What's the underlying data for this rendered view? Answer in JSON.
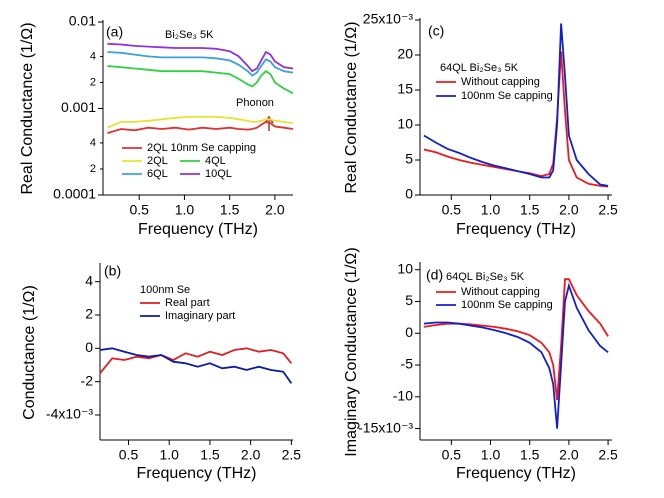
{
  "chart_data": [
    {
      "type": "line",
      "ylog": true,
      "xlabel": "Frequency (THz)",
      "ylabel": "Real Conductance (1/Ω)",
      "annotations": [
        "(a)",
        "Bi₂Se₃ 5K",
        "Phonon"
      ],
      "xlim": [
        0.1,
        2.2
      ],
      "ylim": [
        0.0001,
        0.01
      ],
      "xticks": [
        0.5,
        {
          "value": 1,
          "label": "1.0"
        },
        1.5,
        {
          "value": 2,
          "label": "2.0"
        }
      ],
      "yticks": [
        0.0001,
        {
          "value": 0.0002,
          "label": "2"
        },
        {
          "value": 0.0004,
          "label": "4"
        },
        0.001,
        {
          "value": 0.002,
          "label": "2"
        },
        {
          "value": 0.004,
          "label": "4"
        },
        0.01
      ],
      "x": [
        0.15,
        0.3,
        0.45,
        0.6,
        0.75,
        0.9,
        1.05,
        1.2,
        1.35,
        1.5,
        1.6,
        1.7,
        1.75,
        1.8,
        1.85,
        1.9,
        1.95,
        2.0,
        2.1,
        2.2
      ],
      "series": [
        {
          "name": "2QL 10nm Se capping",
          "color": "#e03030",
          "values": [
            0.00052,
            0.00058,
            0.00056,
            0.0006,
            0.00058,
            0.0006,
            0.00057,
            0.0006,
            0.00058,
            0.0006,
            0.00058,
            0.00057,
            0.00058,
            0.0006,
            0.00065,
            0.0007,
            0.00068,
            0.00062,
            0.0006,
            0.00058
          ]
        },
        {
          "name": "2QL",
          "color": "#e4e430",
          "values": [
            0.0006,
            0.0007,
            0.0007,
            0.00072,
            0.00075,
            0.00078,
            0.0008,
            0.0008,
            0.0008,
            0.00078,
            0.00075,
            0.00072,
            0.0007,
            0.0007,
            0.00072,
            0.00075,
            0.00075,
            0.00072,
            0.0007,
            0.00068
          ]
        },
        {
          "name": "4QL",
          "color": "#30d040",
          "values": [
            0.0031,
            0.003,
            0.0029,
            0.0028,
            0.0027,
            0.0027,
            0.0027,
            0.0027,
            0.0026,
            0.0025,
            0.0022,
            0.0019,
            0.0018,
            0.002,
            0.0024,
            0.0027,
            0.0025,
            0.002,
            0.0017,
            0.0015
          ]
        },
        {
          "name": "6QL",
          "color": "#3aa0e0",
          "values": [
            0.0045,
            0.0044,
            0.0042,
            0.004,
            0.0039,
            0.0039,
            0.0039,
            0.0039,
            0.0038,
            0.0036,
            0.0032,
            0.0027,
            0.0024,
            0.0026,
            0.0031,
            0.0037,
            0.0035,
            0.003,
            0.0027,
            0.0026
          ]
        },
        {
          "name": "10QL",
          "color": "#9030e0",
          "values": [
            0.0056,
            0.0055,
            0.0053,
            0.0052,
            0.0051,
            0.005,
            0.005,
            0.005,
            0.0049,
            0.0046,
            0.004,
            0.0031,
            0.0027,
            0.0029,
            0.0036,
            0.0045,
            0.0042,
            0.0035,
            0.003,
            0.0029
          ]
        }
      ]
    },
    {
      "type": "line",
      "xlabel": "Frequency (THz)",
      "ylabel": "Conductance (1/Ω)",
      "annotations": [
        "(b)",
        "100nm Se"
      ],
      "xlim": [
        0.15,
        2.52
      ],
      "ylim": [
        -0.0055,
        0.005
      ],
      "xticks": [
        0.5,
        {
          "value": 1,
          "label": "1.0"
        },
        1.5,
        {
          "value": 2,
          "label": "2.0"
        },
        2.5
      ],
      "yticks": [
        {
          "value": -0.004,
          "label": "-4x10⁻³"
        },
        {
          "value": -0.002,
          "label": "-2"
        },
        0,
        {
          "value": 0.002,
          "label": "2"
        },
        {
          "value": 0.004,
          "label": "4"
        }
      ],
      "x": [
        0.15,
        0.3,
        0.45,
        0.6,
        0.75,
        0.9,
        1.05,
        1.2,
        1.35,
        1.5,
        1.65,
        1.8,
        1.95,
        2.1,
        2.25,
        2.4,
        2.5
      ],
      "series": [
        {
          "name": "Real part",
          "color": "#e02020",
          "values": [
            -0.0015,
            -0.0006,
            -0.0007,
            -0.0005,
            -0.0006,
            -0.0004,
            -0.0007,
            -0.0003,
            -0.0005,
            -0.0002,
            -0.0004,
            -0.0001,
            0,
            -0.0002,
            -0.0001,
            -0.0003,
            -0.0009
          ]
        },
        {
          "name": "Imaginary part",
          "color": "#0a1ca8",
          "values": [
            -0.0001,
            0,
            -0.0002,
            -0.0004,
            -0.0005,
            -0.0004,
            -0.0008,
            -0.0009,
            -0.0011,
            -0.0009,
            -0.0012,
            -0.0011,
            -0.0013,
            -0.0011,
            -0.0013,
            -0.0014,
            -0.0021
          ]
        }
      ]
    },
    {
      "type": "line",
      "xlabel": "Frequency (THz)",
      "ylabel": "Real Conductance (1/Ω)",
      "annotations": [
        "(c)",
        "64QL Bi₂Se₃ 5K"
      ],
      "xlim": [
        0.1,
        2.55
      ],
      "ylim": [
        0,
        0.025
      ],
      "xticks": [
        0.5,
        {
          "value": 1,
          "label": "1.0"
        },
        1.5,
        {
          "value": 2,
          "label": "2.0"
        },
        2.5
      ],
      "yticks": [
        0,
        {
          "value": 0.005,
          "label": "5"
        },
        {
          "value": 0.01,
          "label": "10"
        },
        {
          "value": 0.015,
          "label": "15"
        },
        {
          "value": 0.02,
          "label": "20"
        },
        {
          "value": 0.025,
          "label": "25x10⁻³"
        }
      ],
      "x": [
        0.15,
        0.3,
        0.45,
        0.6,
        0.75,
        0.9,
        1.05,
        1.2,
        1.35,
        1.5,
        1.65,
        1.75,
        1.8,
        1.85,
        1.9,
        1.95,
        2.0,
        2.1,
        2.25,
        2.4,
        2.5
      ],
      "series": [
        {
          "name": "Without capping",
          "color": "#f01818",
          "values": [
            0.0065,
            0.0061,
            0.0055,
            0.005,
            0.0046,
            0.0043,
            0.004,
            0.0037,
            0.0034,
            0.0031,
            0.0027,
            0.003,
            0.0045,
            0.011,
            0.0205,
            0.012,
            0.005,
            0.0025,
            0.0016,
            0.0013,
            0.0012
          ]
        },
        {
          "name": "100nm Se capping",
          "color": "#1020d0",
          "values": [
            0.0085,
            0.0075,
            0.0066,
            0.006,
            0.0053,
            0.0047,
            0.0042,
            0.0038,
            0.0034,
            0.003,
            0.0025,
            0.0025,
            0.0035,
            0.01,
            0.0245,
            0.017,
            0.0085,
            0.005,
            0.003,
            0.0015,
            0.0013
          ]
        }
      ]
    },
    {
      "type": "line",
      "xlabel": "Frequency (THz)",
      "ylabel": "Imaginary Conductance (1/Ω)",
      "annotations": [
        "(d)",
        "64QL Bi₂Se₃ 5K"
      ],
      "xlim": [
        0.1,
        2.55
      ],
      "ylim": [
        -0.0168,
        0.0109
      ],
      "xticks": [
        0.5,
        {
          "value": 1,
          "label": "1.0"
        },
        1.5,
        {
          "value": 2,
          "label": "2.0"
        },
        2.5
      ],
      "yticks": [
        {
          "value": -0.015,
          "label": "-15x10⁻³"
        },
        {
          "value": -0.01,
          "label": "-10"
        },
        {
          "value": -0.005,
          "label": "-5"
        },
        0,
        {
          "value": 0.005,
          "label": "5"
        },
        {
          "value": 0.01,
          "label": "10"
        }
      ],
      "x": [
        0.15,
        0.3,
        0.45,
        0.6,
        0.75,
        0.9,
        1.05,
        1.2,
        1.35,
        1.5,
        1.65,
        1.75,
        1.8,
        1.85,
        1.9,
        1.95,
        2.0,
        2.1,
        2.25,
        2.4,
        2.5
      ],
      "series": [
        {
          "name": "Without capping",
          "color": "#f01818",
          "values": [
            0.001,
            0.0013,
            0.0015,
            0.0015,
            0.0014,
            0.0012,
            0.001,
            0.0007,
            0.0003,
            -0.0003,
            -0.0015,
            -0.003,
            -0.005,
            -0.0105,
            -0.002,
            0.0085,
            0.0085,
            0.006,
            0.0035,
            0.0015,
            -0.0005
          ]
        },
        {
          "name": "100nm Se capping",
          "color": "#1020d0",
          "values": [
            0.0015,
            0.0017,
            0.0017,
            0.0015,
            0.0012,
            0.0009,
            0.0005,
            0,
            -0.0006,
            -0.0015,
            -0.003,
            -0.0055,
            -0.008,
            -0.015,
            -0.005,
            0.005,
            0.0075,
            0.004,
            0.0005,
            -0.002,
            -0.003
          ]
        }
      ]
    }
  ]
}
